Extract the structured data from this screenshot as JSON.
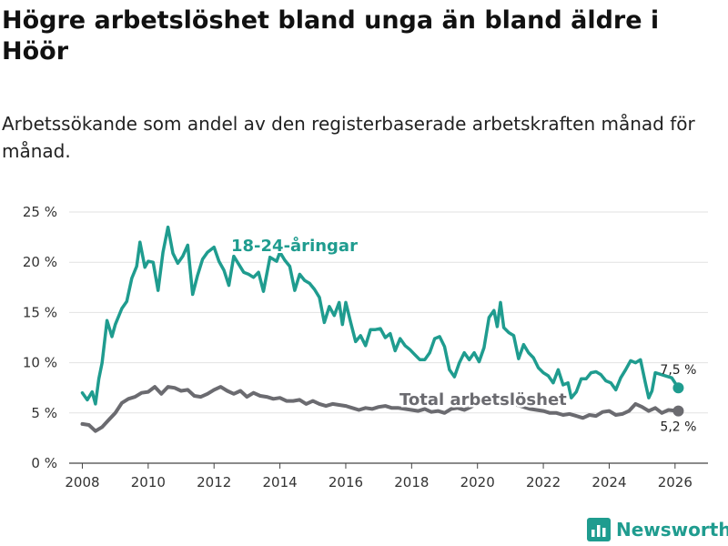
{
  "chart_data": {
    "type": "line",
    "title": "Högre arbetslöshet bland unga än bland äldre i Höör",
    "subtitle": "Arbetssökande som andel av den registerbaserade arbetskraften månad för månad.",
    "xlabel": "",
    "ylabel": "",
    "xlim": [
      2007.6,
      2027.0
    ],
    "ylim": [
      0,
      25
    ],
    "x_ticks": [
      2008,
      2010,
      2012,
      2014,
      2016,
      2018,
      2020,
      2022,
      2024,
      2026
    ],
    "x_tick_labels": [
      "2008",
      "2010",
      "2012",
      "2014",
      "2016",
      "2018",
      "2020",
      "2022",
      "2024",
      "2026"
    ],
    "y_ticks": [
      0,
      5,
      10,
      15,
      20,
      25
    ],
    "y_tick_labels": [
      "0 %",
      "5 %",
      "10 %",
      "15 %",
      "20 %",
      "25 %"
    ],
    "grid": true,
    "series": [
      {
        "name": "Total arbetslöshet",
        "color": "#6b6b70",
        "end_label": "5,2 %",
        "points": [
          [
            2008.0,
            3.9
          ],
          [
            2008.2,
            3.8
          ],
          [
            2008.4,
            3.2
          ],
          [
            2008.6,
            3.6
          ],
          [
            2008.8,
            4.3
          ],
          [
            2009.0,
            5.0
          ],
          [
            2009.2,
            6.0
          ],
          [
            2009.4,
            6.4
          ],
          [
            2009.6,
            6.6
          ],
          [
            2009.8,
            7.0
          ],
          [
            2010.0,
            7.1
          ],
          [
            2010.2,
            7.6
          ],
          [
            2010.4,
            6.9
          ],
          [
            2010.6,
            7.6
          ],
          [
            2010.8,
            7.5
          ],
          [
            2011.0,
            7.2
          ],
          [
            2011.2,
            7.3
          ],
          [
            2011.4,
            6.7
          ],
          [
            2011.6,
            6.6
          ],
          [
            2011.8,
            6.9
          ],
          [
            2012.0,
            7.3
          ],
          [
            2012.2,
            7.6
          ],
          [
            2012.4,
            7.2
          ],
          [
            2012.6,
            6.9
          ],
          [
            2012.8,
            7.2
          ],
          [
            2013.0,
            6.6
          ],
          [
            2013.2,
            7.0
          ],
          [
            2013.4,
            6.7
          ],
          [
            2013.6,
            6.6
          ],
          [
            2013.8,
            6.4
          ],
          [
            2014.0,
            6.5
          ],
          [
            2014.2,
            6.2
          ],
          [
            2014.4,
            6.2
          ],
          [
            2014.6,
            6.3
          ],
          [
            2014.8,
            5.9
          ],
          [
            2015.0,
            6.2
          ],
          [
            2015.2,
            5.9
          ],
          [
            2015.4,
            5.7
          ],
          [
            2015.6,
            5.9
          ],
          [
            2015.8,
            5.8
          ],
          [
            2016.0,
            5.7
          ],
          [
            2016.2,
            5.5
          ],
          [
            2016.4,
            5.3
          ],
          [
            2016.6,
            5.5
          ],
          [
            2016.8,
            5.4
          ],
          [
            2017.0,
            5.6
          ],
          [
            2017.2,
            5.7
          ],
          [
            2017.4,
            5.5
          ],
          [
            2017.6,
            5.5
          ],
          [
            2017.8,
            5.4
          ],
          [
            2018.0,
            5.3
          ],
          [
            2018.2,
            5.2
          ],
          [
            2018.4,
            5.4
          ],
          [
            2018.6,
            5.1
          ],
          [
            2018.8,
            5.2
          ],
          [
            2019.0,
            5.0
          ],
          [
            2019.2,
            5.4
          ],
          [
            2019.4,
            5.5
          ],
          [
            2019.6,
            5.3
          ],
          [
            2019.8,
            5.6
          ],
          [
            2020.0,
            6.0
          ],
          [
            2020.2,
            6.5
          ],
          [
            2020.4,
            6.7
          ],
          [
            2020.6,
            6.5
          ],
          [
            2020.8,
            6.1
          ],
          [
            2021.0,
            5.9
          ],
          [
            2021.2,
            5.8
          ],
          [
            2021.4,
            5.6
          ],
          [
            2021.6,
            5.4
          ],
          [
            2021.8,
            5.3
          ],
          [
            2022.0,
            5.2
          ],
          [
            2022.2,
            5.0
          ],
          [
            2022.4,
            5.0
          ],
          [
            2022.6,
            4.8
          ],
          [
            2022.8,
            4.9
          ],
          [
            2023.0,
            4.7
          ],
          [
            2023.2,
            4.5
          ],
          [
            2023.4,
            4.8
          ],
          [
            2023.6,
            4.7
          ],
          [
            2023.8,
            5.1
          ],
          [
            2024.0,
            5.2
          ],
          [
            2024.2,
            4.8
          ],
          [
            2024.4,
            4.9
          ],
          [
            2024.6,
            5.2
          ],
          [
            2024.8,
            5.9
          ],
          [
            2025.0,
            5.6
          ],
          [
            2025.2,
            5.2
          ],
          [
            2025.4,
            5.5
          ],
          [
            2025.6,
            5.0
          ],
          [
            2025.8,
            5.3
          ],
          [
            2026.1,
            5.2
          ]
        ]
      },
      {
        "name": "18-24-åringar",
        "color": "#1f9c8f",
        "end_label": "7,5 %",
        "points": [
          [
            2008.0,
            7.0
          ],
          [
            2008.15,
            6.3
          ],
          [
            2008.3,
            7.1
          ],
          [
            2008.4,
            5.9
          ],
          [
            2008.5,
            8.4
          ],
          [
            2008.6,
            10.0
          ],
          [
            2008.75,
            14.2
          ],
          [
            2008.9,
            12.6
          ],
          [
            2009.0,
            13.8
          ],
          [
            2009.2,
            15.4
          ],
          [
            2009.35,
            16.1
          ],
          [
            2009.5,
            18.4
          ],
          [
            2009.65,
            19.6
          ],
          [
            2009.75,
            22.0
          ],
          [
            2009.9,
            19.5
          ],
          [
            2010.0,
            20.1
          ],
          [
            2010.15,
            20.0
          ],
          [
            2010.3,
            17.2
          ],
          [
            2010.45,
            21.0
          ],
          [
            2010.6,
            23.5
          ],
          [
            2010.75,
            20.9
          ],
          [
            2010.9,
            19.9
          ],
          [
            2011.05,
            20.6
          ],
          [
            2011.2,
            21.7
          ],
          [
            2011.35,
            16.8
          ],
          [
            2011.5,
            18.7
          ],
          [
            2011.65,
            20.3
          ],
          [
            2011.8,
            21.0
          ],
          [
            2012.0,
            21.5
          ],
          [
            2012.15,
            20.1
          ],
          [
            2012.3,
            19.2
          ],
          [
            2012.45,
            17.7
          ],
          [
            2012.6,
            20.6
          ],
          [
            2012.75,
            19.8
          ],
          [
            2012.9,
            19.0
          ],
          [
            2013.05,
            18.8
          ],
          [
            2013.2,
            18.5
          ],
          [
            2013.35,
            19.0
          ],
          [
            2013.5,
            17.1
          ],
          [
            2013.7,
            20.5
          ],
          [
            2013.9,
            20.1
          ],
          [
            2014.0,
            21.0
          ],
          [
            2014.15,
            20.2
          ],
          [
            2014.3,
            19.6
          ],
          [
            2014.45,
            17.2
          ],
          [
            2014.6,
            18.8
          ],
          [
            2014.75,
            18.2
          ],
          [
            2014.9,
            17.9
          ],
          [
            2015.05,
            17.3
          ],
          [
            2015.2,
            16.5
          ],
          [
            2015.35,
            14.0
          ],
          [
            2015.5,
            15.6
          ],
          [
            2015.65,
            14.7
          ],
          [
            2015.8,
            16.0
          ],
          [
            2015.9,
            13.8
          ],
          [
            2016.0,
            16.0
          ],
          [
            2016.15,
            14.0
          ],
          [
            2016.3,
            12.1
          ],
          [
            2016.45,
            12.7
          ],
          [
            2016.6,
            11.7
          ],
          [
            2016.75,
            13.3
          ],
          [
            2016.9,
            13.3
          ],
          [
            2017.05,
            13.4
          ],
          [
            2017.2,
            12.5
          ],
          [
            2017.35,
            12.9
          ],
          [
            2017.5,
            11.2
          ],
          [
            2017.65,
            12.4
          ],
          [
            2017.8,
            11.7
          ],
          [
            2017.95,
            11.3
          ],
          [
            2018.1,
            10.8
          ],
          [
            2018.25,
            10.3
          ],
          [
            2018.4,
            10.3
          ],
          [
            2018.55,
            11.0
          ],
          [
            2018.7,
            12.4
          ],
          [
            2018.85,
            12.6
          ],
          [
            2019.0,
            11.6
          ],
          [
            2019.15,
            9.3
          ],
          [
            2019.3,
            8.6
          ],
          [
            2019.45,
            10.0
          ],
          [
            2019.6,
            11.0
          ],
          [
            2019.75,
            10.3
          ],
          [
            2019.9,
            11.0
          ],
          [
            2020.05,
            10.1
          ],
          [
            2020.2,
            11.5
          ],
          [
            2020.35,
            14.5
          ],
          [
            2020.5,
            15.2
          ],
          [
            2020.6,
            13.6
          ],
          [
            2020.7,
            16.0
          ],
          [
            2020.8,
            13.5
          ],
          [
            2020.95,
            13.0
          ],
          [
            2021.1,
            12.7
          ],
          [
            2021.25,
            10.4
          ],
          [
            2021.4,
            11.8
          ],
          [
            2021.55,
            11.0
          ],
          [
            2021.7,
            10.5
          ],
          [
            2021.85,
            9.5
          ],
          [
            2022.0,
            9.0
          ],
          [
            2022.15,
            8.7
          ],
          [
            2022.3,
            8.0
          ],
          [
            2022.45,
            9.3
          ],
          [
            2022.6,
            7.8
          ],
          [
            2022.75,
            8.0
          ],
          [
            2022.85,
            6.5
          ],
          [
            2023.0,
            7.1
          ],
          [
            2023.15,
            8.4
          ],
          [
            2023.3,
            8.4
          ],
          [
            2023.45,
            9.0
          ],
          [
            2023.6,
            9.1
          ],
          [
            2023.75,
            8.8
          ],
          [
            2023.9,
            8.2
          ],
          [
            2024.05,
            8.0
          ],
          [
            2024.2,
            7.3
          ],
          [
            2024.35,
            8.5
          ],
          [
            2024.5,
            9.3
          ],
          [
            2024.65,
            10.2
          ],
          [
            2024.8,
            10.0
          ],
          [
            2024.95,
            10.3
          ],
          [
            2025.1,
            8.0
          ],
          [
            2025.2,
            6.5
          ],
          [
            2025.3,
            7.2
          ],
          [
            2025.4,
            9.0
          ],
          [
            2025.9,
            8.5
          ],
          [
            2026.0,
            8.0
          ],
          [
            2026.1,
            7.5
          ]
        ]
      }
    ],
    "annotations": [
      {
        "text": "18-24-åringar",
        "series": "18-24-åringar"
      },
      {
        "text": "Total arbetslöshet",
        "series": "Total arbetslöshet"
      }
    ]
  },
  "brand": {
    "name": "Newsworthy",
    "color": "#1f9c8f",
    "icon": "bar-chart-logo-icon"
  }
}
